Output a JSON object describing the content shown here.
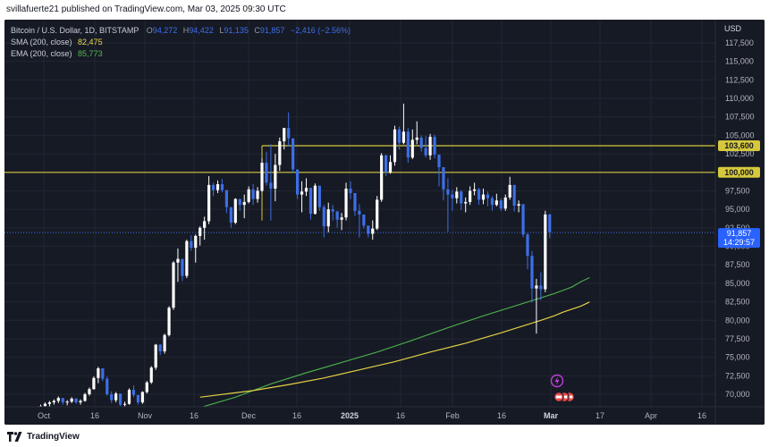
{
  "header": {
    "publisher": "svillafuerte21 published on TradingView.com, Mar 03, 2025 09:30 UTC"
  },
  "legend": {
    "symbol": "Bitcoin / U.S. Dollar, 1D, BITSTAMP",
    "o_label": "O",
    "o_value": "94,272",
    "h_label": "H",
    "h_value": "94,422",
    "l_label": "L",
    "l_value": "91,135",
    "c_label": "C",
    "c_value": "91,857",
    "change": "−2,416 (−2.56%)",
    "sma_label": "SMA (200, close)",
    "sma_value": "82,475",
    "ema_label": "EMA (200, close)",
    "ema_value": "85,773"
  },
  "footer": {
    "brand": "TradingView",
    "logo_icon": "tradingview-logo-icon"
  },
  "colors": {
    "background": "#161a25",
    "grid": "#232632",
    "candle_up": "#ffffff",
    "candle_down": "#3d6fe6",
    "sma": "#e3d145",
    "ema": "#4aa94a",
    "resistance": "#d6c83c",
    "price_badge": "#2962ff"
  },
  "chart_data": {
    "type": "candlestick",
    "title": "Bitcoin / U.S. Dollar, 1D, BITSTAMP",
    "currency": "USD",
    "x_ticks": [
      "Oct",
      "16",
      "Nov",
      "16",
      "Dec",
      "16",
      "2025",
      "16",
      "Feb",
      "16",
      "Mar",
      "17",
      "Apr",
      "16"
    ],
    "y_ticks": [
      "70,000",
      "72,500",
      "75,000",
      "77,500",
      "80,000",
      "82,500",
      "85,000",
      "87,500",
      "90,000",
      "92,500",
      "95,000",
      "97,500",
      "100,000",
      "102,500",
      "105,000",
      "107,500",
      "110,000",
      "112,500",
      "115,000",
      "117,500"
    ],
    "ylim": [
      68000,
      120000
    ],
    "grid": true,
    "horizontal_levels": [
      {
        "value": 103600,
        "label": "103,600"
      },
      {
        "value": 100000,
        "label": "100,000"
      }
    ],
    "current_price": {
      "value": 91857,
      "label": "91,857",
      "countdown": "14:29:57"
    },
    "candles_ohlc": [
      [
        68100,
        68600,
        67900,
        68400
      ],
      [
        68400,
        68900,
        68100,
        68700
      ],
      [
        68700,
        69100,
        68300,
        68900
      ],
      [
        68900,
        69300,
        68600,
        69100
      ],
      [
        69100,
        69700,
        68800,
        69500
      ],
      [
        69500,
        69400,
        68600,
        68900
      ],
      [
        68900,
        69200,
        68500,
        69000
      ],
      [
        69000,
        69600,
        68800,
        69400
      ],
      [
        69400,
        69500,
        68700,
        68900
      ],
      [
        68900,
        69300,
        68600,
        69100
      ],
      [
        69100,
        70200,
        69000,
        70000
      ],
      [
        70000,
        70900,
        69800,
        70700
      ],
      [
        70700,
        72400,
        70600,
        72200
      ],
      [
        72200,
        73700,
        71500,
        73500
      ],
      [
        73500,
        73300,
        71800,
        72100
      ],
      [
        72100,
        72400,
        69800,
        70000
      ],
      [
        70000,
        70400,
        68800,
        69200
      ],
      [
        69200,
        70300,
        68900,
        70100
      ],
      [
        70100,
        70000,
        68400,
        68600
      ],
      [
        68600,
        69000,
        68200,
        68700
      ],
      [
        68700,
        70800,
        68600,
        70600
      ],
      [
        70600,
        71200,
        69600,
        69900
      ],
      [
        69900,
        69700,
        68600,
        68900
      ],
      [
        68900,
        70400,
        68700,
        70300
      ],
      [
        70300,
        71800,
        70100,
        71600
      ],
      [
        71600,
        73800,
        71400,
        73600
      ],
      [
        73600,
        76800,
        73300,
        76700
      ],
      [
        76700,
        76800,
        75300,
        75800
      ],
      [
        75800,
        78200,
        75500,
        78000
      ],
      [
        78000,
        81900,
        77800,
        81700
      ],
      [
        81700,
        88000,
        81400,
        87800
      ],
      [
        87800,
        89700,
        85200,
        88300
      ],
      [
        88300,
        88000,
        85300,
        86000
      ],
      [
        86000,
        90900,
        85700,
        90700
      ],
      [
        90700,
        91500,
        89400,
        89800
      ],
      [
        89800,
        91600,
        87800,
        91400
      ],
      [
        91400,
        92700,
        90100,
        92500
      ],
      [
        92500,
        94000,
        90900,
        93400
      ],
      [
        93400,
        99500,
        93000,
        98300
      ],
      [
        98300,
        98600,
        96800,
        97600
      ],
      [
        97600,
        98900,
        97200,
        98400
      ],
      [
        98400,
        99100,
        97300,
        97600
      ],
      [
        97600,
        97300,
        94500,
        95300
      ],
      [
        95300,
        94800,
        92500,
        93200
      ],
      [
        93200,
        96500,
        93000,
        96400
      ],
      [
        96400,
        96300,
        94800,
        95600
      ],
      [
        95600,
        97000,
        93800,
        96000
      ],
      [
        96000,
        98100,
        95800,
        97700
      ],
      [
        97700,
        98400,
        95600,
        96400
      ],
      [
        96400,
        98000,
        95900,
        97500
      ],
      [
        97500,
        101900,
        97300,
        101300
      ],
      [
        101300,
        102800,
        98200,
        98600
      ],
      [
        98600,
        103800,
        93500,
        97800
      ],
      [
        97800,
        102500,
        96100,
        101000
      ],
      [
        101000,
        104700,
        100200,
        104200
      ],
      [
        104200,
        106000,
        103100,
        106000
      ],
      [
        106000,
        108100,
        103500,
        104600
      ],
      [
        104600,
        104400,
        99900,
        100400
      ],
      [
        100400,
        100000,
        96400,
        97000
      ],
      [
        97000,
        98800,
        94600,
        97400
      ],
      [
        97400,
        99200,
        96800,
        97900
      ],
      [
        97900,
        97500,
        93600,
        94400
      ],
      [
        94400,
        98500,
        94300,
        98200
      ],
      [
        98200,
        98100,
        94800,
        95300
      ],
      [
        95300,
        95600,
        91200,
        92700
      ],
      [
        92700,
        95900,
        91900,
        95000
      ],
      [
        95000,
        95600,
        93500,
        94700
      ],
      [
        94700,
        94800,
        92500,
        93600
      ],
      [
        93600,
        94500,
        92200,
        93900
      ],
      [
        93900,
        98600,
        93500,
        97800
      ],
      [
        97800,
        98800,
        96400,
        97200
      ],
      [
        97200,
        97000,
        94100,
        94800
      ],
      [
        94800,
        95700,
        91200,
        94300
      ],
      [
        94300,
        94000,
        92400,
        92800
      ],
      [
        92800,
        92600,
        91200,
        91700
      ],
      [
        91700,
        93500,
        90900,
        92400
      ],
      [
        92400,
        96800,
        92200,
        96300
      ],
      [
        96300,
        102600,
        96000,
        102300
      ],
      [
        102300,
        102400,
        99500,
        100000
      ],
      [
        100000,
        102300,
        99800,
        101400
      ],
      [
        101400,
        106300,
        100900,
        105800
      ],
      [
        105800,
        106200,
        103100,
        104000
      ],
      [
        104000,
        109300,
        103800,
        105500
      ],
      [
        105500,
        106000,
        101300,
        102000
      ],
      [
        102000,
        105800,
        101800,
        104400
      ],
      [
        104400,
        106900,
        103800,
        104700
      ],
      [
        104700,
        105000,
        102800,
        103300
      ],
      [
        103300,
        104900,
        102000,
        102300
      ],
      [
        102300,
        105200,
        101700,
        104800
      ],
      [
        104800,
        105100,
        101900,
        102400
      ],
      [
        102400,
        102000,
        98100,
        100700
      ],
      [
        100700,
        99200,
        96200,
        97700
      ],
      [
        97700,
        99200,
        92000,
        97000
      ],
      [
        97000,
        97600,
        94800,
        96500
      ],
      [
        96500,
        98000,
        95800,
        97400
      ],
      [
        97400,
        97600,
        94900,
        95800
      ],
      [
        95800,
        96600,
        94600,
        96000
      ],
      [
        96000,
        98100,
        95600,
        97500
      ],
      [
        97500,
        98600,
        96900,
        97700
      ],
      [
        97700,
        97900,
        95600,
        96300
      ],
      [
        96300,
        97800,
        95700,
        97000
      ],
      [
        97000,
        97400,
        95400,
        96500
      ],
      [
        96500,
        96800,
        94800,
        95600
      ],
      [
        95600,
        97100,
        95400,
        96200
      ],
      [
        96200,
        96500,
        94800,
        95100
      ],
      [
        95100,
        97000,
        94800,
        96600
      ],
      [
        96600,
        99400,
        96300,
        98300
      ],
      [
        98300,
        98000,
        94700,
        95500
      ],
      [
        95500,
        96200,
        94600,
        95700
      ],
      [
        95700,
        95400,
        91200,
        91600
      ],
      [
        91600,
        91800,
        86900,
        88700
      ],
      [
        88700,
        89400,
        82400,
        84300
      ],
      [
        84300,
        85600,
        78200,
        84700
      ],
      [
        84700,
        86500,
        82700,
        84200
      ],
      [
        84200,
        94800,
        83800,
        94300
      ],
      [
        94300,
        94400,
        91100,
        91900
      ]
    ],
    "sma_200": [
      [
        113,
        80000
      ],
      [
        116,
        80600
      ],
      [
        118,
        81100
      ],
      [
        120,
        81500
      ],
      [
        122,
        81900
      ],
      [
        124,
        82475
      ],
      [
        104,
        78300
      ],
      [
        96,
        76900
      ],
      [
        88,
        75700
      ],
      [
        80,
        74400
      ],
      [
        72,
        73300
      ],
      [
        64,
        72200
      ],
      [
        56,
        71300
      ],
      [
        48,
        70500
      ],
      [
        40,
        69900
      ],
      [
        36,
        69600
      ]
    ],
    "ema_200": [
      [
        36,
        68200
      ],
      [
        44,
        69600
      ],
      [
        52,
        71400
      ],
      [
        60,
        72900
      ],
      [
        68,
        74300
      ],
      [
        76,
        75700
      ],
      [
        84,
        77300
      ],
      [
        92,
        79000
      ],
      [
        100,
        80600
      ],
      [
        108,
        82100
      ],
      [
        116,
        83600
      ],
      [
        120,
        84500
      ],
      [
        122,
        85200
      ],
      [
        124,
        85773
      ]
    ],
    "flags": [
      "lightning-flag-icon",
      "us-economic-event-flags"
    ]
  }
}
